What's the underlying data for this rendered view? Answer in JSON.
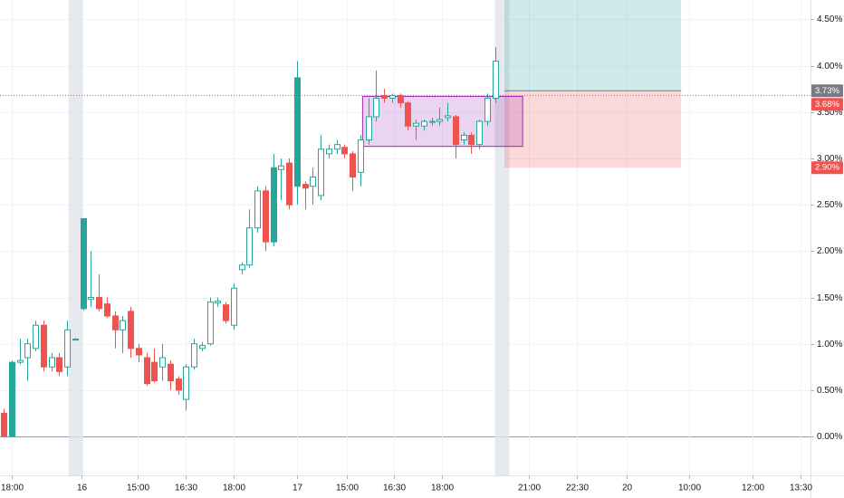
{
  "chart_data": {
    "type": "candlestick",
    "up_color": "#26a69a",
    "down_color": "#ef5350",
    "grid": true,
    "open": [
      0.25,
      0.0,
      0.8,
      0.85,
      0.95,
      1.2,
      0.75,
      0.85,
      0.75,
      1.05,
      1.38,
      1.48,
      1.5,
      1.43,
      1.3,
      1.15,
      1.35,
      0.95,
      0.85,
      0.8,
      0.75,
      0.78,
      0.62,
      0.4,
      0.75,
      0.95,
      1.0,
      1.44,
      1.42,
      1.2,
      1.8,
      1.85,
      2.25,
      2.65,
      2.1,
      2.88,
      2.95,
      2.7,
      2.72,
      2.7,
      2.6,
      3.05,
      3.1,
      3.12,
      3.05,
      2.85,
      3.2,
      3.45,
      3.68,
      3.65,
      3.68,
      3.6,
      3.35,
      3.35,
      3.39,
      3.4,
      3.44,
      3.45,
      3.2,
      3.25,
      3.15,
      3.4,
      3.65
    ],
    "high": [
      0.3,
      0.82,
      1.05,
      1.05,
      1.25,
      1.25,
      0.9,
      0.9,
      1.25,
      1.06,
      2.35,
      2.0,
      1.75,
      1.5,
      1.35,
      1.3,
      1.4,
      1.0,
      0.9,
      0.95,
      1.0,
      0.82,
      0.65,
      0.78,
      1.05,
      1.02,
      1.5,
      1.5,
      1.45,
      1.65,
      1.88,
      2.45,
      2.7,
      2.7,
      3.05,
      3.0,
      3.0,
      4.05,
      2.75,
      2.9,
      3.25,
      3.15,
      3.2,
      3.15,
      3.08,
      3.25,
      3.65,
      3.95,
      3.75,
      3.7,
      3.7,
      3.62,
      3.42,
      3.42,
      3.44,
      3.55,
      3.6,
      3.47,
      3.28,
      3.28,
      3.42,
      3.7,
      4.2
    ],
    "low": [
      0.0,
      0.0,
      0.78,
      0.6,
      0.92,
      0.7,
      0.7,
      0.65,
      0.65,
      1.04,
      1.36,
      1.4,
      1.35,
      1.28,
      0.95,
      0.9,
      0.85,
      0.8,
      0.55,
      0.58,
      0.6,
      0.5,
      0.45,
      0.28,
      0.72,
      0.92,
      0.98,
      1.4,
      1.22,
      1.15,
      1.75,
      1.82,
      2.2,
      2.0,
      2.05,
      2.55,
      2.45,
      2.5,
      2.45,
      2.5,
      2.55,
      3.0,
      3.05,
      3.0,
      2.65,
      2.7,
      3.15,
      3.4,
      3.6,
      3.6,
      3.55,
      3.3,
      3.2,
      3.3,
      3.35,
      3.35,
      3.4,
      3.0,
      3.15,
      3.05,
      3.1,
      3.35,
      3.6
    ],
    "close": [
      0.0,
      0.8,
      0.82,
      1.0,
      1.2,
      0.75,
      0.85,
      0.7,
      1.15,
      1.05,
      2.35,
      1.5,
      1.38,
      1.3,
      1.15,
      1.25,
      0.95,
      0.88,
      0.57,
      0.6,
      0.85,
      0.6,
      0.5,
      0.75,
      1.0,
      0.98,
      1.45,
      1.46,
      1.25,
      1.6,
      1.85,
      2.25,
      2.65,
      2.1,
      2.9,
      2.92,
      2.5,
      3.87,
      2.68,
      2.8,
      3.1,
      3.1,
      3.15,
      3.05,
      2.8,
      3.2,
      3.45,
      3.65,
      3.65,
      3.68,
      3.6,
      3.35,
      3.38,
      3.4,
      3.4,
      3.42,
      3.46,
      3.15,
      3.25,
      3.15,
      3.4,
      3.65,
      4.05
    ],
    "xlim": [
      -0.46,
      101.83
    ],
    "ylim": [
      -0.42,
      4.71
    ],
    "xticks": [
      {
        "value": 1,
        "label": "18:00"
      },
      {
        "value": 9.8,
        "label": "16"
      },
      {
        "value": 16.9,
        "label": "15:00"
      },
      {
        "value": 23,
        "label": "16:30"
      },
      {
        "value": 29,
        "label": "18:00"
      },
      {
        "value": 37,
        "label": "17"
      },
      {
        "value": 43.3,
        "label": "15:00"
      },
      {
        "value": 49.3,
        "label": "16:30"
      },
      {
        "value": 55.3,
        "label": "18:00"
      },
      {
        "value": 66.3,
        "label": "21:00"
      },
      {
        "value": 72.3,
        "label": "22:30"
      },
      {
        "value": 78.6,
        "label": "20"
      },
      {
        "value": 86.5,
        "label": "10:00"
      },
      {
        "value": 94.5,
        "label": "12:00"
      },
      {
        "value": 100.6,
        "label": "13:30"
      }
    ],
    "yticks": [
      {
        "value": 0,
        "label": "0.00%"
      },
      {
        "value": 0.5,
        "label": "0.50%"
      },
      {
        "value": 1,
        "label": "1.00%"
      },
      {
        "value": 1.5,
        "label": "1.50%"
      },
      {
        "value": 2,
        "label": "2.00%"
      },
      {
        "value": 2.5,
        "label": "2.50%"
      },
      {
        "value": 3,
        "label": "3.00%"
      },
      {
        "value": 3.5,
        "label": "3.50%"
      },
      {
        "value": 4,
        "label": "4.00%"
      },
      {
        "value": 4.5,
        "label": "4.50%"
      }
    ],
    "price_labels": [
      {
        "value": 3.73,
        "label": "3.73%",
        "color": "#787b86"
      },
      {
        "value": 3.68,
        "label": "3.68%",
        "color": "#ef5350",
        "dotted_line": true
      },
      {
        "value": 2.9,
        "label": "2.90%",
        "color": "#ef5350"
      }
    ],
    "session_breaks": [
      9.1,
      62.9
    ],
    "highlight_box": {
      "x": [
        45.3,
        65.5
      ],
      "y": [
        3.13,
        3.67
      ],
      "color": "#9c27b0"
    },
    "position": {
      "x": [
        63.2,
        85.5
      ],
      "entry": 3.73,
      "stop": 2.9
    }
  }
}
